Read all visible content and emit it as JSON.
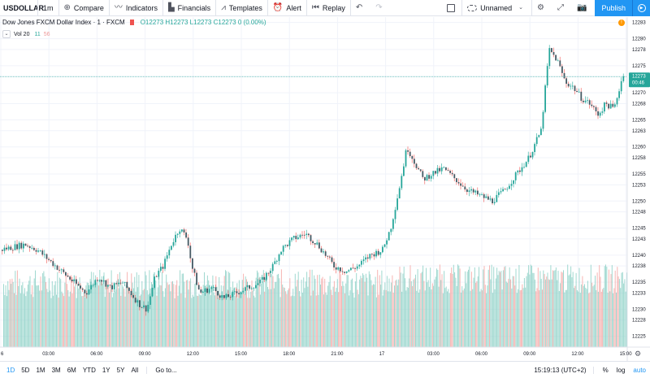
{
  "toolbar": {
    "symbol": "USDOLLAR",
    "interval": "1m",
    "compare": "Compare",
    "indicators": "Indicators",
    "financials": "Financials",
    "templates": "Templates",
    "alert": "Alert",
    "replay": "Replay",
    "layout_name": "Unnamed",
    "publish": "Publish"
  },
  "legend": {
    "title": "Dow Jones FXCM Dollar Index · 1 · FXCM",
    "open": "O12273",
    "high": "H12273",
    "low": "L12273",
    "close": "C12273",
    "change": "0 (0.00%)",
    "vol_label": "Vol 20",
    "vol_value_1": "11",
    "vol_value_2": "56"
  },
  "price_labels": {
    "last_price": "12273",
    "countdown": "00:46"
  },
  "bottombar": {
    "ranges": [
      "1D",
      "5D",
      "1M",
      "3M",
      "6M",
      "YTD",
      "1Y",
      "5Y",
      "All"
    ],
    "goto": "Go to...",
    "clock": "15:19:13 (UTC+2)",
    "percent": "%",
    "log": "log",
    "auto": "auto"
  },
  "colors": {
    "up": "#26a69a",
    "down": "#ef5350",
    "accent": "#2196f3",
    "volume_up": "#8fd1c8",
    "volume_down": "#f4a8a6"
  },
  "chart_data": {
    "type": "candlestick",
    "y_ticks": [
      12225,
      12228,
      12230,
      12233,
      12235,
      12238,
      12240,
      12243,
      12245,
      12248,
      12250,
      12253,
      12255,
      12258,
      12260,
      12263,
      12265,
      12268,
      12270,
      12273,
      12275,
      12278,
      12280,
      12283
    ],
    "x_ticks": [
      "6",
      "03:00",
      "06:00",
      "09:00",
      "12:00",
      "15:00",
      "18:00",
      "21:00",
      "17",
      "03:00",
      "06:00",
      "09:00",
      "12:00",
      "15:00"
    ],
    "ylim": [
      12223,
      12284
    ],
    "price_path": [
      [
        0,
        12241
      ],
      [
        30,
        12242
      ],
      [
        45,
        12241
      ],
      [
        60,
        12239
      ],
      [
        75,
        12237
      ],
      [
        90,
        12235
      ],
      [
        105,
        12233
      ],
      [
        120,
        12236
      ],
      [
        135,
        12234
      ],
      [
        150,
        12235
      ],
      [
        160,
        12233
      ],
      [
        170,
        12231
      ],
      [
        180,
        12230
      ],
      [
        190,
        12236
      ],
      [
        200,
        12238
      ],
      [
        210,
        12242
      ],
      [
        220,
        12245
      ],
      [
        230,
        12243
      ],
      [
        235,
        12238
      ],
      [
        245,
        12233
      ],
      [
        260,
        12234
      ],
      [
        275,
        12232
      ],
      [
        290,
        12233
      ],
      [
        305,
        12234
      ],
      [
        320,
        12235
      ],
      [
        335,
        12238
      ],
      [
        345,
        12241
      ],
      [
        360,
        12243
      ],
      [
        375,
        12244
      ],
      [
        390,
        12242
      ],
      [
        400,
        12240
      ],
      [
        410,
        12238
      ],
      [
        425,
        12237
      ],
      [
        440,
        12238
      ],
      [
        455,
        12240
      ],
      [
        470,
        12241
      ],
      [
        480,
        12245
      ],
      [
        490,
        12252
      ],
      [
        500,
        12260
      ],
      [
        510,
        12257
      ],
      [
        520,
        12254
      ],
      [
        530,
        12255
      ],
      [
        545,
        12256
      ],
      [
        560,
        12254
      ],
      [
        575,
        12252
      ],
      [
        590,
        12251
      ],
      [
        605,
        12250
      ],
      [
        620,
        12252
      ],
      [
        635,
        12255
      ],
      [
        650,
        12258
      ],
      [
        665,
        12263
      ],
      [
        675,
        12278
      ],
      [
        685,
        12276
      ],
      [
        695,
        12272
      ],
      [
        705,
        12271
      ],
      [
        715,
        12269
      ],
      [
        725,
        12268
      ],
      [
        735,
        12266
      ],
      [
        745,
        12268
      ],
      [
        755,
        12267
      ],
      [
        765,
        12273
      ]
    ]
  }
}
